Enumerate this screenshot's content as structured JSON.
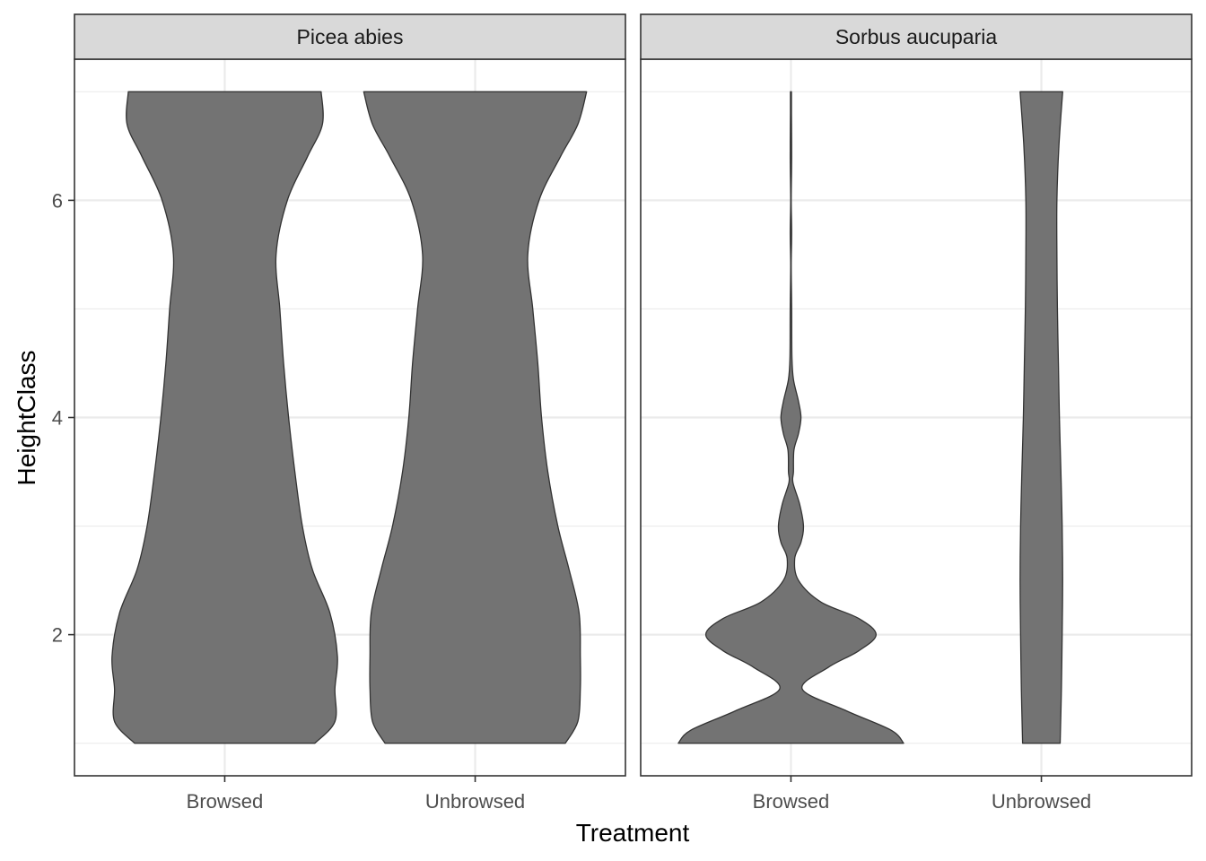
{
  "chart_data": {
    "type": "violin",
    "xlabel": "Treatment",
    "ylabel": "HeightClass",
    "categories": [
      "Browsed",
      "Unbrowsed"
    ],
    "y_ticks": [
      2,
      4,
      6
    ],
    "ylim": [
      0.7,
      7.3
    ],
    "grid": true,
    "theme": "bw",
    "fill_color": "#6e6e6e",
    "outline_color": "#333333",
    "facets": [
      {
        "name": "Picea abies",
        "violins": [
          {
            "category": "Browsed",
            "profile": [
              [
                1.0,
                0.36
              ],
              [
                1.2,
                0.44
              ],
              [
                1.5,
                0.44
              ],
              [
                1.8,
                0.45
              ],
              [
                2.2,
                0.42
              ],
              [
                2.6,
                0.35
              ],
              [
                3.0,
                0.31
              ],
              [
                3.5,
                0.28
              ],
              [
                4.0,
                0.255
              ],
              [
                4.5,
                0.235
              ],
              [
                5.0,
                0.22
              ],
              [
                5.5,
                0.205
              ],
              [
                6.0,
                0.25
              ],
              [
                6.4,
                0.33
              ],
              [
                6.7,
                0.39
              ],
              [
                7.0,
                0.385
              ]
            ]
          },
          {
            "category": "Unbrowsed",
            "profile": [
              [
                1.0,
                0.36
              ],
              [
                1.2,
                0.41
              ],
              [
                1.5,
                0.42
              ],
              [
                1.8,
                0.42
              ],
              [
                2.2,
                0.415
              ],
              [
                2.6,
                0.375
              ],
              [
                3.0,
                0.33
              ],
              [
                3.5,
                0.29
              ],
              [
                4.0,
                0.265
              ],
              [
                4.5,
                0.25
              ],
              [
                5.0,
                0.23
              ],
              [
                5.5,
                0.21
              ],
              [
                6.0,
                0.255
              ],
              [
                6.4,
                0.34
              ],
              [
                6.7,
                0.41
              ],
              [
                7.0,
                0.445
              ]
            ]
          }
        ]
      },
      {
        "name": "Sorbus aucuparia",
        "violins": [
          {
            "category": "Browsed",
            "profile": [
              [
                1.0,
                0.45
              ],
              [
                1.12,
                0.4
              ],
              [
                1.3,
                0.22
              ],
              [
                1.5,
                0.045
              ],
              [
                1.7,
                0.15
              ],
              [
                1.85,
                0.27
              ],
              [
                2.0,
                0.34
              ],
              [
                2.15,
                0.27
              ],
              [
                2.3,
                0.12
              ],
              [
                2.5,
                0.03
              ],
              [
                2.7,
                0.015
              ],
              [
                2.85,
                0.04
              ],
              [
                3.0,
                0.05
              ],
              [
                3.2,
                0.035
              ],
              [
                3.4,
                0.008
              ],
              [
                3.5,
                0.01
              ],
              [
                3.7,
                0.012
              ],
              [
                3.85,
                0.03
              ],
              [
                4.0,
                0.04
              ],
              [
                4.15,
                0.03
              ],
              [
                4.35,
                0.01
              ],
              [
                4.55,
                0.004
              ],
              [
                5.0,
                0.003
              ],
              [
                5.4,
                0.001
              ],
              [
                5.7,
                0.003
              ],
              [
                6.0,
                0.001
              ],
              [
                6.4,
                0.003
              ],
              [
                6.8,
                0.002
              ],
              [
                7.0,
                0.002
              ]
            ]
          },
          {
            "category": "Unbrowsed",
            "profile": [
              [
                1.0,
                0.075
              ],
              [
                1.5,
                0.08
              ],
              [
                2.0,
                0.083
              ],
              [
                2.5,
                0.085
              ],
              [
                3.0,
                0.083
              ],
              [
                3.5,
                0.078
              ],
              [
                4.0,
                0.072
              ],
              [
                4.5,
                0.068
              ],
              [
                5.0,
                0.064
              ],
              [
                5.5,
                0.062
              ],
              [
                6.0,
                0.062
              ],
              [
                6.5,
                0.07
              ],
              [
                7.0,
                0.085
              ]
            ]
          }
        ]
      }
    ]
  }
}
